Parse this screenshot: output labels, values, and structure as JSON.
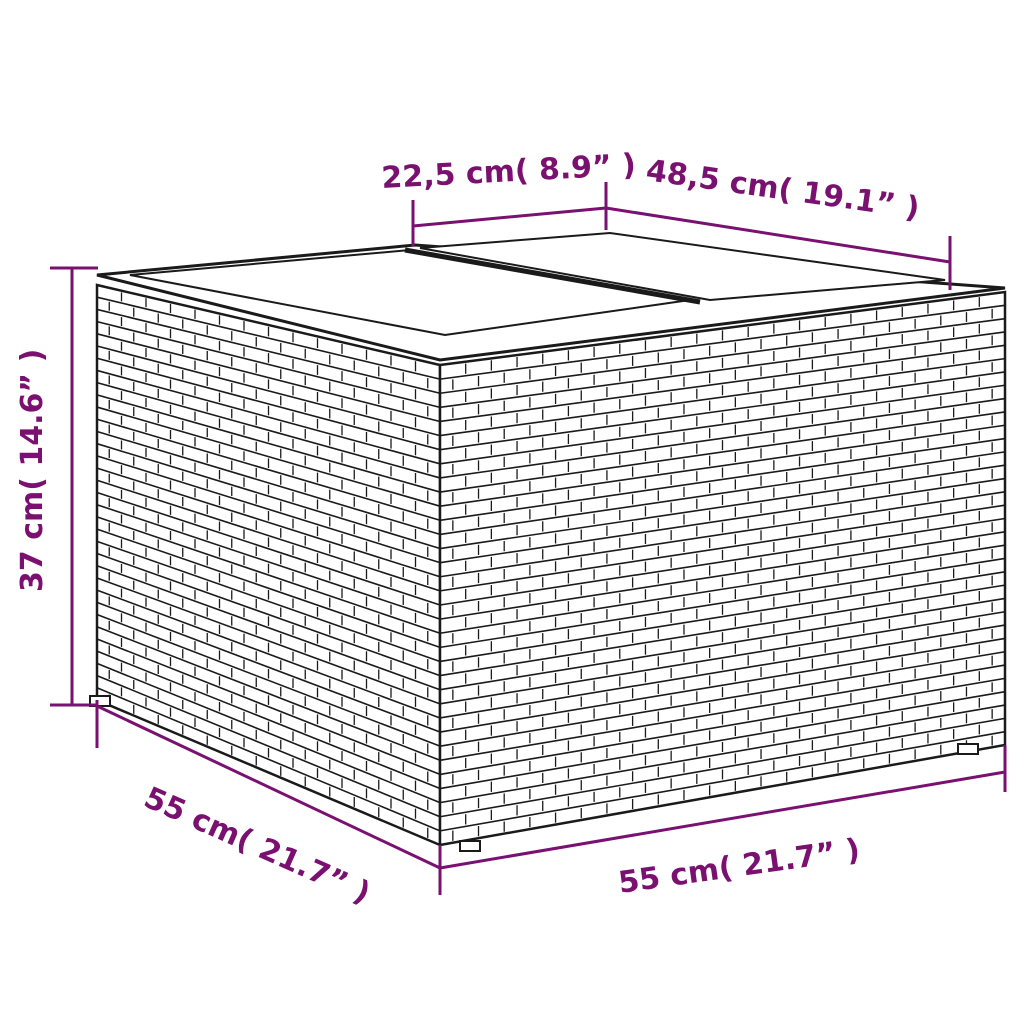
{
  "colors": {
    "dimension": "#7a1070",
    "outline": "#1a1a1a"
  },
  "dimensions": {
    "top_depth_half": "22,5 cm( 8.9”  )",
    "top_width": "48,5 cm( 19.1”  )",
    "height": "37 cm( 14.6”  )",
    "depth": "55 cm( 21.7”  )",
    "width": "55 cm( 21.7”  )"
  }
}
